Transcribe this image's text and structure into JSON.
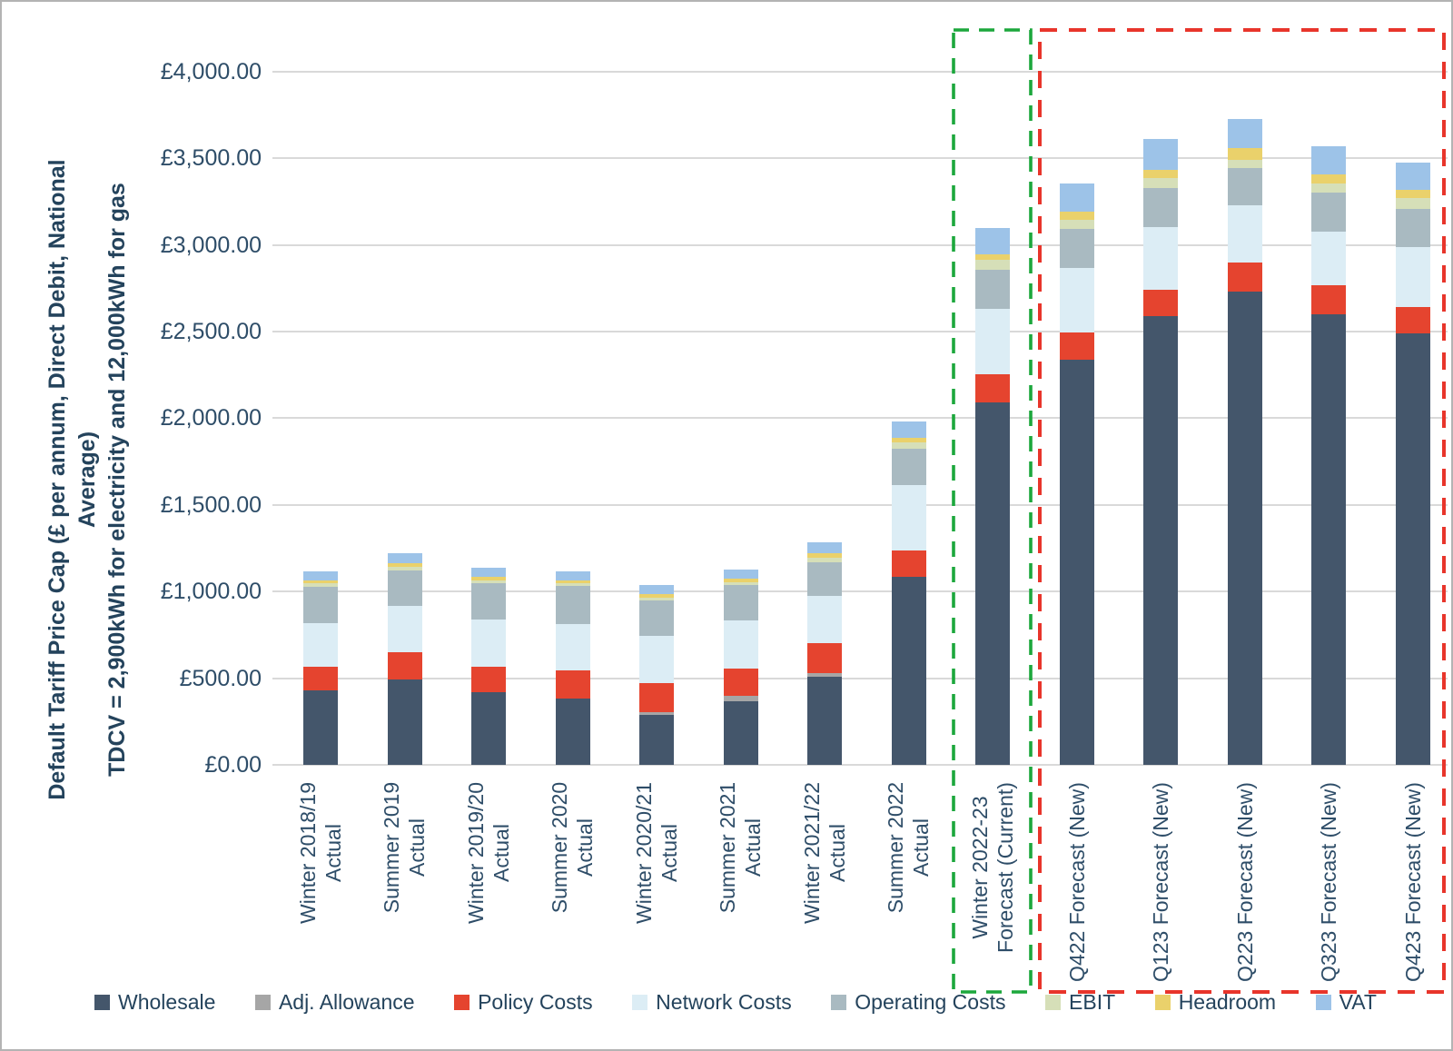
{
  "window": {
    "background": "#ffffff",
    "frame_border_color": "#b3b3b3"
  },
  "chart_data": {
    "type": "bar",
    "stacked": true,
    "grid": "horizontal",
    "grid_color": "#d9d9d9",
    "text_color": "#2e4d68",
    "title_color": "#24435c",
    "legend_position": "bottom",
    "y_axis_title_lines": [
      "Default Tariff Price Cap (£ per annum, Direct Debit, National",
      "Average)",
      "TDCV = 2,900kWh for electricity and 12,000kWh for gas"
    ],
    "ylim": [
      0,
      4200
    ],
    "y_ticks": [
      {
        "value": 4000,
        "label": "£4,000.00"
      },
      {
        "value": 3500,
        "label": "£3,500.00"
      },
      {
        "value": 3000,
        "label": "£3,000.00"
      },
      {
        "value": 2500,
        "label": "£2,500.00"
      },
      {
        "value": 2000,
        "label": "£2,000.00"
      },
      {
        "value": 1500,
        "label": "£1,500.00"
      },
      {
        "value": 1000,
        "label": "£1,000.00"
      },
      {
        "value": 500,
        "label": "£500.00"
      },
      {
        "value": 0,
        "label": "£0.00"
      }
    ],
    "categories": [
      {
        "lines": [
          "Winter 2018/19",
          "Actual"
        ]
      },
      {
        "lines": [
          "Summer 2019",
          "Actual"
        ]
      },
      {
        "lines": [
          "Winter 2019/20",
          "Actual"
        ]
      },
      {
        "lines": [
          "Summer 2020",
          "Actual"
        ]
      },
      {
        "lines": [
          "Winter 2020/21",
          "Actual"
        ]
      },
      {
        "lines": [
          "Summer 2021",
          "Actual"
        ]
      },
      {
        "lines": [
          "Winter 2021/22",
          "Actual"
        ]
      },
      {
        "lines": [
          "Summer 2022",
          "Actual"
        ]
      },
      {
        "lines": [
          "Winter 2022-23",
          "Forecast (Current)"
        ]
      },
      {
        "lines": [
          "Q422 Forecast (New)"
        ]
      },
      {
        "lines": [
          "Q123 Forecast (New)"
        ]
      },
      {
        "lines": [
          "Q223 Forecast (New)"
        ]
      },
      {
        "lines": [
          "Q323 Forecast (New)"
        ]
      },
      {
        "lines": [
          "Q423 Forecast (New)"
        ]
      }
    ],
    "series": [
      {
        "name": "Wholesale",
        "color": "#44566b",
        "values": [
          430,
          493,
          420,
          381,
          290,
          368,
          510,
          1085,
          2090,
          2340,
          2590,
          2730,
          2600,
          2490
        ]
      },
      {
        "name": "Adj. Allowance",
        "color": "#a6a6a6",
        "values": [
          0,
          0,
          0,
          0,
          16,
          28,
          20,
          0,
          0,
          0,
          0,
          0,
          0,
          0
        ]
      },
      {
        "name": "Policy Costs",
        "color": "#e5442f",
        "values": [
          134,
          158,
          148,
          163,
          165,
          162,
          170,
          150,
          162,
          153,
          152,
          168,
          165,
          150
        ]
      },
      {
        "name": "Network Costs",
        "color": "#dcedf5",
        "values": [
          256,
          266,
          270,
          267,
          272,
          274,
          273,
          377,
          380,
          373,
          360,
          330,
          310,
          345
        ]
      },
      {
        "name": "Operating Costs",
        "color": "#a9bac1",
        "values": [
          207,
          207,
          211,
          220,
          207,
          207,
          198,
          212,
          225,
          227,
          228,
          215,
          225,
          225
        ]
      },
      {
        "name": "EBIT",
        "color": "#d6dfb8",
        "values": [
          19,
          17,
          14,
          16,
          16,
          17,
          25,
          35,
          58,
          53,
          55,
          48,
          55,
          60
        ]
      },
      {
        "name": "Headroom",
        "color": "#ead16b",
        "values": [
          18,
          22,
          20,
          17,
          18,
          18,
          26,
          27,
          33,
          48,
          48,
          70,
          52,
          46
        ]
      },
      {
        "name": "VAT",
        "color": "#9dc3e8",
        "values": [
          50,
          57,
          53,
          53,
          53,
          53,
          62,
          94,
          148,
          162,
          178,
          167,
          163,
          157
        ]
      }
    ],
    "bar_totals": [
      1114,
      1220,
      1136,
      1117,
      1037,
      1127,
      1284,
      1980,
      3096,
      3356,
      3611,
      3728,
      3570,
      3473
    ],
    "annotations": [
      {
        "id": "current-forecast-highlight",
        "around": "Winter 2022-23 Forecast (Current)",
        "style": "dashed",
        "color": "#1ca73c"
      },
      {
        "id": "new-forecast-highlight",
        "around": "Q422 Forecast (New) – Q423 Forecast (New)",
        "style": "dashed",
        "color": "#e8352b"
      }
    ]
  }
}
